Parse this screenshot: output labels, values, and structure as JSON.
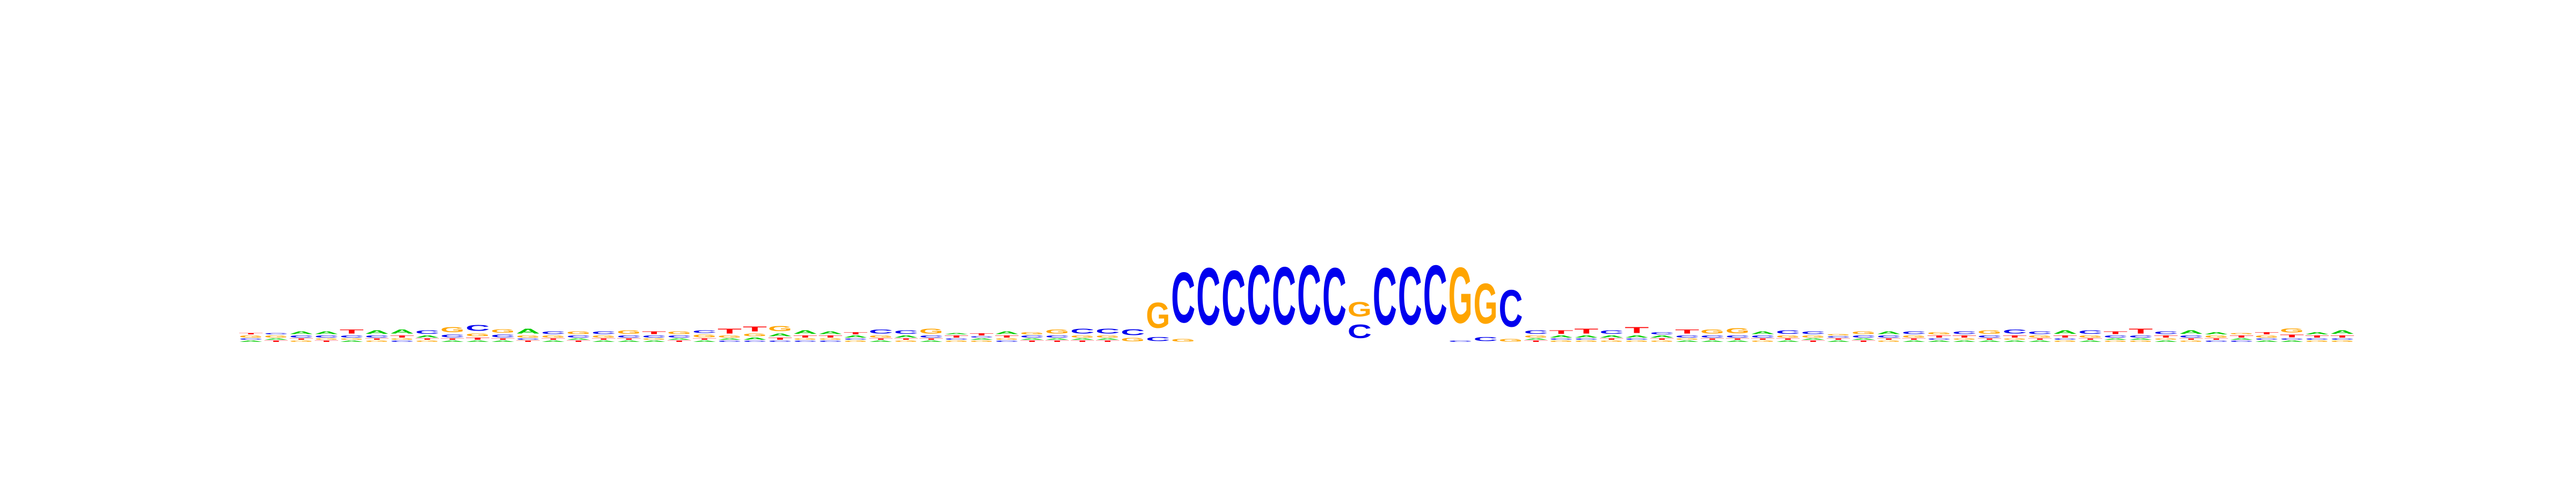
{
  "chart_data": {
    "type": "sequence-logo",
    "title": "",
    "xlabel": "",
    "ylabel": "",
    "ylim": [
      0,
      2
    ],
    "grid": false,
    "alphabet": [
      "A",
      "C",
      "G",
      "T"
    ],
    "colors": {
      "A": "#00cc00",
      "C": "#0000ee",
      "G": "#ffa500",
      "T": "#ff0000"
    },
    "positions": [
      [
        [
          "A",
          0.02
        ],
        [
          "C",
          0.02
        ],
        [
          "G",
          0.03
        ],
        [
          "T",
          0.02
        ]
      ],
      [
        [
          "T",
          0.02
        ],
        [
          "A",
          0.02
        ],
        [
          "G",
          0.03
        ],
        [
          "C",
          0.02
        ]
      ],
      [
        [
          "G",
          0.02
        ],
        [
          "T",
          0.02
        ],
        [
          "C",
          0.03
        ],
        [
          "A",
          0.04
        ]
      ],
      [
        [
          "T",
          0.02
        ],
        [
          "G",
          0.02
        ],
        [
          "C",
          0.03
        ],
        [
          "A",
          0.04
        ]
      ],
      [
        [
          "A",
          0.02
        ],
        [
          "G",
          0.02
        ],
        [
          "C",
          0.03
        ],
        [
          "T",
          0.06
        ]
      ],
      [
        [
          "G",
          0.02
        ],
        [
          "T",
          0.02
        ],
        [
          "C",
          0.03
        ],
        [
          "A",
          0.05
        ]
      ],
      [
        [
          "C",
          0.02
        ],
        [
          "G",
          0.02
        ],
        [
          "T",
          0.03
        ],
        [
          "A",
          0.06
        ]
      ],
      [
        [
          "G",
          0.02
        ],
        [
          "T",
          0.02
        ],
        [
          "A",
          0.03
        ],
        [
          "C",
          0.05
        ]
      ],
      [
        [
          "A",
          0.02
        ],
        [
          "T",
          0.02
        ],
        [
          "C",
          0.04
        ],
        [
          "G",
          0.08
        ]
      ],
      [
        [
          "A",
          0.02
        ],
        [
          "T",
          0.03
        ],
        [
          "G",
          0.04
        ],
        [
          "C",
          0.09
        ]
      ],
      [
        [
          "A",
          0.02
        ],
        [
          "T",
          0.02
        ],
        [
          "C",
          0.04
        ],
        [
          "G",
          0.05
        ]
      ],
      [
        [
          "T",
          0.02
        ],
        [
          "C",
          0.02
        ],
        [
          "G",
          0.03
        ],
        [
          "A",
          0.07
        ]
      ],
      [
        [
          "A",
          0.02
        ],
        [
          "T",
          0.02
        ],
        [
          "G",
          0.03
        ],
        [
          "C",
          0.04
        ]
      ],
      [
        [
          "T",
          0.02
        ],
        [
          "A",
          0.02
        ],
        [
          "C",
          0.03
        ],
        [
          "G",
          0.04
        ]
      ],
      [
        [
          "A",
          0.02
        ],
        [
          "T",
          0.02
        ],
        [
          "G",
          0.03
        ],
        [
          "C",
          0.04
        ]
      ],
      [
        [
          "A",
          0.02
        ],
        [
          "T",
          0.02
        ],
        [
          "C",
          0.03
        ],
        [
          "G",
          0.05
        ]
      ],
      [
        [
          "A",
          0.02
        ],
        [
          "G",
          0.02
        ],
        [
          "C",
          0.03
        ],
        [
          "T",
          0.04
        ]
      ],
      [
        [
          "T",
          0.02
        ],
        [
          "A",
          0.02
        ],
        [
          "C",
          0.03
        ],
        [
          "G",
          0.04
        ]
      ],
      [
        [
          "A",
          0.02
        ],
        [
          "T",
          0.02
        ],
        [
          "G",
          0.04
        ],
        [
          "C",
          0.04
        ]
      ],
      [
        [
          "C",
          0.02
        ],
        [
          "A",
          0.02
        ],
        [
          "G",
          0.03
        ],
        [
          "T",
          0.07
        ]
      ],
      [
        [
          "C",
          0.02
        ],
        [
          "A",
          0.03
        ],
        [
          "G",
          0.04
        ],
        [
          "T",
          0.07
        ]
      ],
      [
        [
          "C",
          0.02
        ],
        [
          "T",
          0.03
        ],
        [
          "A",
          0.04
        ],
        [
          "G",
          0.08
        ]
      ],
      [
        [
          "C",
          0.02
        ],
        [
          "G",
          0.02
        ],
        [
          "T",
          0.03
        ],
        [
          "A",
          0.05
        ]
      ],
      [
        [
          "C",
          0.02
        ],
        [
          "G",
          0.02
        ],
        [
          "T",
          0.03
        ],
        [
          "A",
          0.04
        ]
      ],
      [
        [
          "G",
          0.02
        ],
        [
          "C",
          0.02
        ],
        [
          "A",
          0.03
        ],
        [
          "T",
          0.03
        ]
      ],
      [
        [
          "A",
          0.02
        ],
        [
          "T",
          0.02
        ],
        [
          "G",
          0.03
        ],
        [
          "C",
          0.06
        ]
      ],
      [
        [
          "G",
          0.02
        ],
        [
          "T",
          0.02
        ],
        [
          "A",
          0.03
        ],
        [
          "C",
          0.05
        ]
      ],
      [
        [
          "A",
          0.02
        ],
        [
          "T",
          0.02
        ],
        [
          "C",
          0.03
        ],
        [
          "G",
          0.07
        ]
      ],
      [
        [
          "G",
          0.02
        ],
        [
          "C",
          0.02
        ],
        [
          "T",
          0.03
        ],
        [
          "A",
          0.02
        ]
      ],
      [
        [
          "G",
          0.02
        ],
        [
          "A",
          0.02
        ],
        [
          "C",
          0.02
        ],
        [
          "T",
          0.03
        ]
      ],
      [
        [
          "C",
          0.02
        ],
        [
          "G",
          0.02
        ],
        [
          "T",
          0.03
        ],
        [
          "A",
          0.04
        ]
      ],
      [
        [
          "T",
          0.02
        ],
        [
          "A",
          0.02
        ],
        [
          "C",
          0.03
        ],
        [
          "G",
          0.03
        ]
      ],
      [
        [
          "T",
          0.02
        ],
        [
          "A",
          0.02
        ],
        [
          "C",
          0.03
        ],
        [
          "G",
          0.06
        ]
      ],
      [
        [
          "T",
          0.02
        ],
        [
          "A",
          0.02
        ],
        [
          "G",
          0.03
        ],
        [
          "C",
          0.07
        ]
      ],
      [
        [
          "T",
          0.02
        ],
        [
          "A",
          0.02
        ],
        [
          "G",
          0.03
        ],
        [
          "C",
          0.07
        ]
      ],
      [
        [
          "G",
          0.05
        ],
        [
          "C",
          0.09
        ]
      ],
      [
        [
          "C",
          0.06
        ],
        [
          "G",
          0.38
        ]
      ],
      [
        [
          "G",
          0.04
        ],
        [
          "C",
          0.75
        ]
      ],
      [
        [
          "C",
          0.85
        ]
      ],
      [
        [
          "C",
          0.82
        ]
      ],
      [
        [
          "C",
          0.88
        ]
      ],
      [
        [
          "C",
          0.86
        ]
      ],
      [
        [
          "C",
          0.88
        ]
      ],
      [
        [
          "C",
          0.85
        ]
      ],
      [
        [
          "C",
          0.2
        ],
        [
          "G",
          0.22
        ]
      ],
      [
        [
          "C",
          0.85
        ]
      ],
      [
        [
          "C",
          0.86
        ]
      ],
      [
        [
          "C",
          0.88
        ]
      ],
      [
        [
          "C",
          0.02
        ],
        [
          "G",
          0.83
        ]
      ],
      [
        [
          "C",
          0.06
        ],
        [
          "G",
          0.6
        ]
      ],
      [
        [
          "G",
          0.04
        ],
        [
          "C",
          0.55
        ]
      ],
      [
        [
          "T",
          0.02
        ],
        [
          "A",
          0.02
        ],
        [
          "G",
          0.03
        ],
        [
          "C",
          0.05
        ]
      ],
      [
        [
          "G",
          0.02
        ],
        [
          "C",
          0.02
        ],
        [
          "A",
          0.03
        ],
        [
          "T",
          0.05
        ]
      ],
      [
        [
          "G",
          0.02
        ],
        [
          "C",
          0.02
        ],
        [
          "A",
          0.03
        ],
        [
          "T",
          0.07
        ]
      ],
      [
        [
          "G",
          0.02
        ],
        [
          "T",
          0.02
        ],
        [
          "A",
          0.03
        ],
        [
          "C",
          0.05
        ]
      ],
      [
        [
          "G",
          0.02
        ],
        [
          "C",
          0.02
        ],
        [
          "A",
          0.03
        ],
        [
          "T",
          0.09
        ]
      ],
      [
        [
          "G",
          0.02
        ],
        [
          "T",
          0.02
        ],
        [
          "A",
          0.03
        ],
        [
          "C",
          0.03
        ]
      ],
      [
        [
          "A",
          0.02
        ],
        [
          "G",
          0.02
        ],
        [
          "C",
          0.03
        ],
        [
          "T",
          0.06
        ]
      ],
      [
        [
          "A",
          0.02
        ],
        [
          "T",
          0.02
        ],
        [
          "C",
          0.03
        ],
        [
          "G",
          0.06
        ]
      ],
      [
        [
          "A",
          0.02
        ],
        [
          "T",
          0.02
        ],
        [
          "C",
          0.03
        ],
        [
          "G",
          0.08
        ]
      ],
      [
        [
          "G",
          0.02
        ],
        [
          "T",
          0.02
        ],
        [
          "C",
          0.03
        ],
        [
          "A",
          0.04
        ]
      ],
      [
        [
          "A",
          0.02
        ],
        [
          "T",
          0.02
        ],
        [
          "G",
          0.03
        ],
        [
          "C",
          0.05
        ]
      ],
      [
        [
          "T",
          0.02
        ],
        [
          "A",
          0.02
        ],
        [
          "G",
          0.03
        ],
        [
          "C",
          0.04
        ]
      ],
      [
        [
          "A",
          0.02
        ],
        [
          "T",
          0.02
        ],
        [
          "C",
          0.02
        ],
        [
          "G",
          0.02
        ]
      ],
      [
        [
          "T",
          0.02
        ],
        [
          "A",
          0.02
        ],
        [
          "C",
          0.03
        ],
        [
          "G",
          0.04
        ]
      ],
      [
        [
          "G",
          0.02
        ],
        [
          "T",
          0.02
        ],
        [
          "C",
          0.03
        ],
        [
          "A",
          0.04
        ]
      ],
      [
        [
          "A",
          0.02
        ],
        [
          "T",
          0.02
        ],
        [
          "G",
          0.03
        ],
        [
          "C",
          0.04
        ]
      ],
      [
        [
          "A",
          0.02
        ],
        [
          "C",
          0.02
        ],
        [
          "T",
          0.03
        ],
        [
          "G",
          0.03
        ]
      ],
      [
        [
          "A",
          0.02
        ],
        [
          "G",
          0.02
        ],
        [
          "T",
          0.03
        ],
        [
          "C",
          0.04
        ]
      ],
      [
        [
          "A",
          0.02
        ],
        [
          "T",
          0.02
        ],
        [
          "C",
          0.03
        ],
        [
          "G",
          0.05
        ]
      ],
      [
        [
          "A",
          0.02
        ],
        [
          "G",
          0.02
        ],
        [
          "T",
          0.03
        ],
        [
          "C",
          0.06
        ]
      ],
      [
        [
          "A",
          0.02
        ],
        [
          "T",
          0.02
        ],
        [
          "G",
          0.03
        ],
        [
          "C",
          0.04
        ]
      ],
      [
        [
          "G",
          0.02
        ],
        [
          "C",
          0.02
        ],
        [
          "T",
          0.03
        ],
        [
          "A",
          0.05
        ]
      ],
      [
        [
          "A",
          0.02
        ],
        [
          "T",
          0.02
        ],
        [
          "G",
          0.03
        ],
        [
          "C",
          0.05
        ]
      ],
      [
        [
          "G",
          0.02
        ],
        [
          "A",
          0.02
        ],
        [
          "C",
          0.03
        ],
        [
          "T",
          0.04
        ]
      ],
      [
        [
          "G",
          0.02
        ],
        [
          "A",
          0.02
        ],
        [
          "C",
          0.03
        ],
        [
          "T",
          0.07
        ]
      ],
      [
        [
          "A",
          0.02
        ],
        [
          "G",
          0.02
        ],
        [
          "T",
          0.03
        ],
        [
          "C",
          0.04
        ]
      ],
      [
        [
          "G",
          0.02
        ],
        [
          "T",
          0.02
        ],
        [
          "C",
          0.03
        ],
        [
          "A",
          0.05
        ]
      ],
      [
        [
          "C",
          0.02
        ],
        [
          "T",
          0.02
        ],
        [
          "G",
          0.03
        ],
        [
          "A",
          0.03
        ]
      ],
      [
        [
          "C",
          0.02
        ],
        [
          "A",
          0.02
        ],
        [
          "T",
          0.03
        ],
        [
          "G",
          0.02
        ]
      ],
      [
        [
          "A",
          0.02
        ],
        [
          "C",
          0.02
        ],
        [
          "G",
          0.03
        ],
        [
          "T",
          0.03
        ]
      ],
      [
        [
          "A",
          0.02
        ],
        [
          "C",
          0.02
        ],
        [
          "T",
          0.04
        ],
        [
          "G",
          0.06
        ]
      ],
      [
        [
          "G",
          0.02
        ],
        [
          "C",
          0.02
        ],
        [
          "T",
          0.03
        ],
        [
          "A",
          0.03
        ]
      ],
      [
        [
          "G",
          0.02
        ],
        [
          "C",
          0.02
        ],
        [
          "T",
          0.03
        ],
        [
          "A",
          0.05
        ]
      ]
    ]
  }
}
